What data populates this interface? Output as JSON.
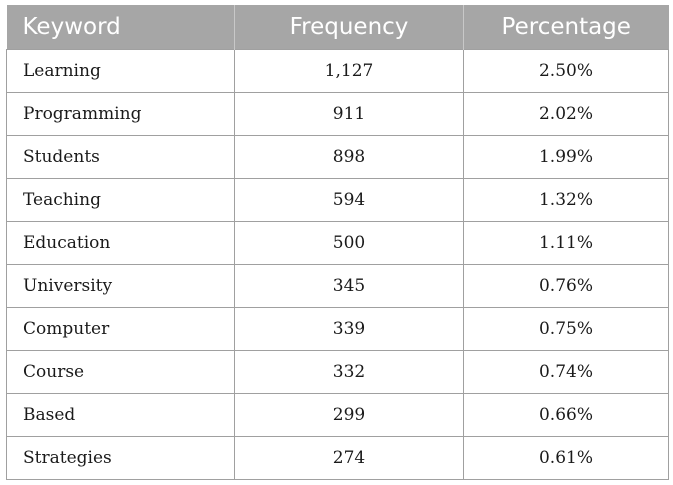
{
  "table": {
    "headers": {
      "keyword": "Keyword",
      "frequency": "Frequency",
      "percentage": "Percentage"
    },
    "rows": [
      {
        "keyword": "Learning",
        "frequency": "1,127",
        "percentage": "2.50%"
      },
      {
        "keyword": "Programming",
        "frequency": "911",
        "percentage": "2.02%"
      },
      {
        "keyword": "Students",
        "frequency": "898",
        "percentage": "1.99%"
      },
      {
        "keyword": "Teaching",
        "frequency": "594",
        "percentage": "1.32%"
      },
      {
        "keyword": "Education",
        "frequency": "500",
        "percentage": "1.11%"
      },
      {
        "keyword": "University",
        "frequency": "345",
        "percentage": "0.76%"
      },
      {
        "keyword": "Computer",
        "frequency": "339",
        "percentage": "0.75%"
      },
      {
        "keyword": "Course",
        "frequency": "332",
        "percentage": "0.74%"
      },
      {
        "keyword": "Based",
        "frequency": "299",
        "percentage": "0.66%"
      },
      {
        "keyword": "Strategies",
        "frequency": "274",
        "percentage": "0.61%"
      }
    ]
  },
  "colors": {
    "header_background": "#a6a6a6",
    "header_text": "#ffffff",
    "grid_lines": "#a0a0a0",
    "body_text": "#1a1a1a"
  }
}
